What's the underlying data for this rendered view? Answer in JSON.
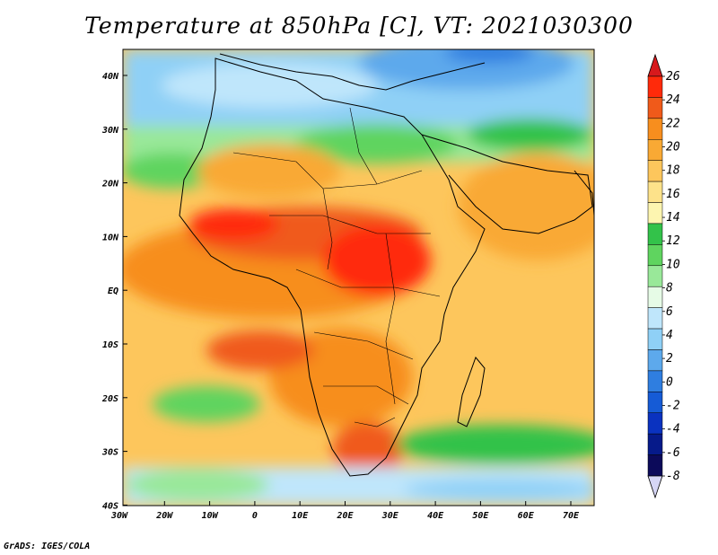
{
  "title": "Temperature at 850hPa [C], VT: 2021030300",
  "footer": "GrADS: IGES/COLA",
  "map": {
    "lon_ticks": [
      "30W",
      "20W",
      "10W",
      "0",
      "10E",
      "20E",
      "30E",
      "40E",
      "50E",
      "60E",
      "70E"
    ],
    "lat_ticks": [
      "40N",
      "30N",
      "20N",
      "10N",
      "EQ",
      "10S",
      "20S",
      "30S",
      "40S"
    ]
  },
  "colorbar": {
    "labels": [
      "26",
      "24",
      "22",
      "20",
      "18",
      "16",
      "14",
      "12",
      "10",
      "8",
      "6",
      "4",
      "2",
      "0",
      "-2",
      "-4",
      "-6",
      "-8"
    ],
    "colors": [
      "#ff2a0a",
      "#f05a1a",
      "#f78e1e",
      "#f9a934",
      "#fdc65c",
      "#fde28a",
      "#fdf5b0",
      "#33c24a",
      "#5fd45f",
      "#99e899",
      "#e6fbe6",
      "#bfe6fb",
      "#8fd0f6",
      "#5da9ec",
      "#2f7ee0",
      "#155bd6",
      "#0a32c0",
      "#061a8a",
      "#0c0a5a"
    ],
    "over_color": "#d7191c",
    "under_color": "#d6d6f5"
  }
}
